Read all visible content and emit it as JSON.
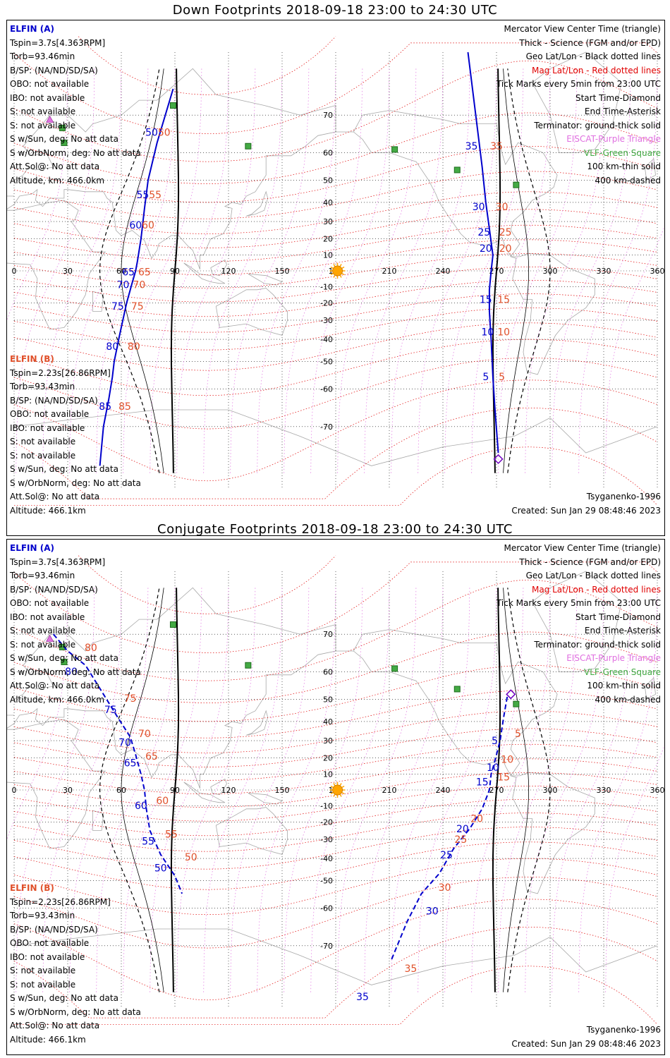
{
  "top": {
    "title": "Down Footprints 2018-09-18 23:00 to 24:30 UTC",
    "elfin_a": {
      "label": "ELFIN (A)",
      "lines": [
        "Tspin=3.7s[4.363RPM]",
        "Torb=93.46min",
        "B/SP: (NA/ND/SD/SA)",
        "OBO: not available",
        "IBO: not available",
        "S: not available",
        "S: not available",
        "S w/Sun, deg: No att data",
        "S w/OrbNorm, deg: No att data",
        "Att.Sol@: No att data",
        "Altitude, km: 466.0km"
      ]
    },
    "elfin_b": {
      "label": "ELFIN (B)",
      "lines": [
        "Tspin=2.23s[26.86RPM]",
        "Torb=93.43min",
        "B/SP: (NA/ND/SD/SA)",
        "OBO: not available",
        "IBO: not available",
        "S: not available",
        "S: not available",
        "S w/Sun, deg: No att data",
        "S w/OrbNorm, deg: No att data",
        "Att.Sol@: No att data",
        "Altitude: 466.1km"
      ]
    },
    "model": "Tsyganenko-1996",
    "created": "Created: Sun Jan 29 08:48:46 2023"
  },
  "bottom": {
    "title": "Conjugate Footprints 2018-09-18 23:00 to 24:30 UTC",
    "elfin_a": {
      "label": "ELFIN (A)",
      "lines": [
        "Tspin=3.7s[4.363RPM]",
        "Torb=93.46min",
        "B/SP: (NA/ND/SD/SA)",
        "OBO: not available",
        "IBO: not available",
        "S: not available",
        "S: not available",
        "S w/Sun, deg: No att data",
        "S w/OrbNorm, deg: No att data",
        "Att.Sol@: No att data",
        "Altitude, km: 466.0km"
      ]
    },
    "elfin_b": {
      "label": "ELFIN (B)",
      "lines": [
        "Tspin=2.23s[26.86RPM]",
        "Torb=93.43min",
        "B/SP: (NA/ND/SD/SA)",
        "OBO: not available",
        "IBO: not available",
        "S: not available",
        "S: not available",
        "S w/Sun, deg: No att data",
        "S w/OrbNorm, deg: No att data",
        "Att.Sol@: No att data",
        "Altitude: 466.1km"
      ]
    },
    "model": "Tsyganenko-1996",
    "created": "Created: Sun Jan 29 08:48:46 2023"
  },
  "legend": [
    {
      "text": "Mercator View Center Time (triangle)",
      "color": "#000000"
    },
    {
      "text": "Thick - Science (FGM and/or EPD)",
      "color": "#000000"
    },
    {
      "text": "Geo Lat/Lon - Black dotted lines",
      "color": "#000000"
    },
    {
      "text": "Mag Lat/Lon - Red dotted lines",
      "color": "#e00000"
    },
    {
      "text": "Tick Marks every 5min from 23:00 UTC",
      "color": "#000000"
    },
    {
      "text": "Start Time-Diamond",
      "color": "#000000"
    },
    {
      "text": "End Time-Asterisk",
      "color": "#000000"
    },
    {
      "text": "Terminator: ground-thick solid",
      "color": "#000000"
    },
    {
      "text": "EISCAT-Purple Triangle",
      "color": "#e070e0"
    },
    {
      "text": "VLF-Green Square",
      "color": "#44aa44"
    },
    {
      "text": "100 km-thin solid",
      "color": "#000000"
    },
    {
      "text": "400 km-dashed",
      "color": "#000000"
    }
  ],
  "axes": {
    "lon_ticks": [
      0,
      30,
      60,
      90,
      120,
      150,
      180,
      210,
      240,
      270,
      300,
      330,
      360
    ],
    "lat_ticks": [
      70,
      60,
      50,
      40,
      30,
      20,
      10,
      0,
      -10,
      -20,
      -30,
      -40,
      -50,
      -60,
      -70
    ],
    "lat_range": [
      -80,
      80
    ],
    "lon_range": [
      0,
      360
    ],
    "grid": true
  },
  "colors": {
    "elfin_a": "#0000cc",
    "elfin_b": "#e0502a",
    "geo_grid": "#000000",
    "mag_grid": "#e00000",
    "eiscat": "#e070e0",
    "vlf": "#44aa44",
    "sun": "#ffa500",
    "coast": "#a8a8a8"
  },
  "vlf_stations": [
    {
      "lon": 27,
      "lat": 67
    },
    {
      "lon": 28,
      "lat": 63
    },
    {
      "lon": 89,
      "lat": 72
    },
    {
      "lon": 131,
      "lat": 62
    },
    {
      "lon": 213,
      "lat": 61
    },
    {
      "lon": 248,
      "lat": 54
    },
    {
      "lon": 281,
      "lat": 48
    }
  ],
  "eiscat": [
    {
      "lon": 20,
      "lat": 69
    }
  ],
  "sun": {
    "lon": 181,
    "lat": 0
  },
  "chart_data": [
    {
      "type": "scatter",
      "title": "Down Footprints 2018-09-18 23:00 to 24:30 UTC",
      "xlabel": "",
      "ylabel": "",
      "xlim": [
        0,
        360
      ],
      "ylim": [
        -80,
        80
      ],
      "series": [
        {
          "name": "ELFIN (A)",
          "points": [
            [
              89,
              75
            ],
            [
              80,
              63
            ],
            [
              75,
              50
            ],
            [
              73,
              37
            ],
            [
              71,
              20
            ],
            [
              69,
              6
            ],
            [
              68,
              0
            ],
            [
              66,
              -8
            ],
            [
              63,
              -20
            ],
            [
              59,
              -38
            ],
            [
              56,
              -50
            ],
            [
              55,
              -56
            ],
            [
              53,
              -63
            ],
            [
              50,
              -70
            ],
            [
              48,
              -77
            ]
          ],
          "tick_labels": [
            {
              "t": "50",
              "lon": 77,
              "lat": 65
            },
            {
              "t": "55",
              "lon": 72,
              "lat": 42
            },
            {
              "t": "60",
              "lon": 68,
              "lat": 26
            },
            {
              "t": "65",
              "lon": 64,
              "lat": -3
            },
            {
              "t": "70",
              "lon": 61,
              "lat": -11
            },
            {
              "t": "75",
              "lon": 58,
              "lat": -24
            },
            {
              "t": "80",
              "lon": 55,
              "lat": -45
            },
            {
              "t": "85",
              "lon": 51,
              "lat": -66
            }
          ],
          "red_labels": [
            {
              "t": "50",
              "lon": 84,
              "lat": 65
            },
            {
              "t": "55",
              "lon": 79,
              "lat": 42
            },
            {
              "t": "60",
              "lon": 75,
              "lat": 26
            },
            {
              "t": "65",
              "lon": 73,
              "lat": -3
            },
            {
              "t": "70",
              "lon": 70,
              "lat": -11
            },
            {
              "t": "75",
              "lon": 69,
              "lat": -24
            },
            {
              "t": "80",
              "lon": 67,
              "lat": -45
            },
            {
              "t": "85",
              "lon": 62,
              "lat": -66
            }
          ]
        },
        {
          "name": "ELFIN (A) track 2",
          "points": [
            [
              254,
              80
            ],
            [
              259,
              68
            ],
            [
              262,
              55
            ],
            [
              264,
              40
            ],
            [
              266,
              26
            ],
            [
              267,
              18
            ],
            [
              268,
              10
            ],
            [
              267,
              0
            ],
            [
              266,
              -12
            ],
            [
              266,
              -25
            ],
            [
              267,
              -40
            ],
            [
              268,
              -56
            ],
            [
              269,
              -65
            ],
            [
              271,
              -75
            ]
          ],
          "start": {
            "lon": 271,
            "lat": -76
          },
          "tick_labels": [
            {
              "t": "35",
              "lon": 256,
              "lat": 61
            },
            {
              "t": "30",
              "lon": 260,
              "lat": 36
            },
            {
              "t": "25",
              "lon": 263,
              "lat": 22
            },
            {
              "t": "20",
              "lon": 264,
              "lat": 12
            },
            {
              "t": "15",
              "lon": 264,
              "lat": -20
            },
            {
              "t": "10",
              "lon": 265,
              "lat": -38
            },
            {
              "t": "5",
              "lon": 264,
              "lat": -57
            }
          ],
          "red_labels": [
            {
              "t": "35",
              "lon": 270,
              "lat": 61
            },
            {
              "t": "30",
              "lon": 273,
              "lat": 36
            },
            {
              "t": "25",
              "lon": 275,
              "lat": 22
            },
            {
              "t": "20",
              "lon": 275,
              "lat": 12
            },
            {
              "t": "15",
              "lon": 274,
              "lat": -20
            },
            {
              "t": "10",
              "lon": 274,
              "lat": -38
            },
            {
              "t": "5",
              "lon": 273,
              "lat": -57
            }
          ]
        }
      ]
    },
    {
      "type": "scatter",
      "title": "Conjugate Footprints 2018-09-18 23:00 to 24:30 UTC",
      "xlabel": "",
      "ylabel": "",
      "xlim": [
        0,
        360
      ],
      "ylim": [
        -80,
        80
      ],
      "series": [
        {
          "name": "ELFIN (A)",
          "points": [
            [
              22,
              70
            ],
            [
              30,
              66
            ],
            [
              40,
              62
            ],
            [
              50,
              52
            ],
            [
              58,
              42
            ],
            [
              65,
              32
            ],
            [
              68,
              22
            ],
            [
              71,
              10
            ],
            [
              73,
              0
            ],
            [
              74,
              -12
            ],
            [
              76,
              -25
            ],
            [
              82,
              -38
            ],
            [
              90,
              -48
            ],
            [
              94,
              -55
            ]
          ],
          "tick_labels": [
            {
              "t": "80",
              "lon": 32,
              "lat": 59
            },
            {
              "t": "75",
              "lon": 54,
              "lat": 44
            },
            {
              "t": "70",
              "lon": 62,
              "lat": 27
            },
            {
              "t": "65",
              "lon": 65,
              "lat": 15
            },
            {
              "t": "60",
              "lon": 71,
              "lat": -12
            },
            {
              "t": "55",
              "lon": 75,
              "lat": -33
            },
            {
              "t": "50",
              "lon": 82,
              "lat": -46
            }
          ],
          "red_labels": [
            {
              "t": "80",
              "lon": 43,
              "lat": 66
            },
            {
              "t": "75",
              "lon": 65,
              "lat": 49
            },
            {
              "t": "70",
              "lon": 73,
              "lat": 32
            },
            {
              "t": "65",
              "lon": 77,
              "lat": 19
            },
            {
              "t": "60",
              "lon": 83,
              "lat": -9
            },
            {
              "t": "55",
              "lon": 88,
              "lat": -29
            },
            {
              "t": "50",
              "lon": 99,
              "lat": -41
            }
          ],
          "extra_labels": [
            {
              "t": "35",
              "lon": 195,
              "lat": -79,
              "color": "#0000cc"
            }
          ]
        },
        {
          "name": "ELFIN (A) track 2",
          "points": [
            [
              276,
              51
            ],
            [
              274,
              42
            ],
            [
              272,
              30
            ],
            [
              269,
              18
            ],
            [
              267,
              10
            ],
            [
              266,
              0
            ],
            [
              262,
              -12
            ],
            [
              255,
              -24
            ],
            [
              246,
              -35
            ],
            [
              238,
              -47
            ],
            [
              228,
              -55
            ],
            [
              220,
              -64
            ],
            [
              211,
              -73
            ]
          ],
          "start": {
            "lon": 278,
            "lat": 52
          },
          "tick_labels": [
            {
              "t": "5",
              "lon": 269,
              "lat": 28
            },
            {
              "t": "10",
              "lon": 268,
              "lat": 12
            },
            {
              "t": "15",
              "lon": 262,
              "lat": 3
            },
            {
              "t": "20",
              "lon": 251,
              "lat": -26
            },
            {
              "t": "25",
              "lon": 242,
              "lat": -40
            },
            {
              "t": "30",
              "lon": 234,
              "lat": -62
            }
          ],
          "red_labels": [
            {
              "t": "5",
              "lon": 282,
              "lat": 32
            },
            {
              "t": "10",
              "lon": 276,
              "lat": 17
            },
            {
              "t": "15",
              "lon": 274,
              "lat": 6
            },
            {
              "t": "20",
              "lon": 259,
              "lat": -20
            },
            {
              "t": "25",
              "lon": 250,
              "lat": -32
            },
            {
              "t": "30",
              "lon": 241,
              "lat": -54
            },
            {
              "t": "35",
              "lon": 222,
              "lat": -75
            }
          ]
        }
      ]
    }
  ]
}
